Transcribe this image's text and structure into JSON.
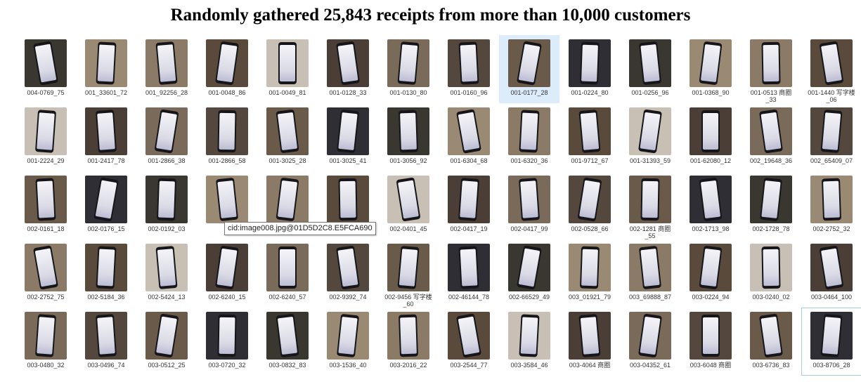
{
  "title": "Randomly gathered 25,843 receipts from more than 10,000 customers",
  "tooltip": "cid:image008.jpg@01D5D2C8.E5FCA690",
  "items": [
    "004-0769_75",
    "001_33601_72",
    "001_92256_28",
    "001-0048_86",
    "001-0049_81",
    "001-0128_33",
    "001-0130_80",
    "001-0160_96",
    "001-0177_28",
    "001-0224_80",
    "001-0256_96",
    "001-0368_90",
    "001-0513 商圈\n_33",
    "001-1440 写字楼\n_06",
    "001-2224_29",
    "001-2417_78",
    "001-2866_38",
    "001-2866_58",
    "001-3025_28",
    "001-3025_41",
    "001-3056_92",
    "001-6304_68",
    "001-6320_36",
    "001-9712_67",
    "001-31393_59",
    "001-62080_12",
    "002_19648_36",
    "002_65409_07",
    "002-0161_18",
    "002-0176_15",
    "002-0192_03",
    "",
    "",
    "",
    "002-0401_45",
    "002-0417_19",
    "002-0417_99",
    "002-0528_66",
    "002-1281 商圈\n_55",
    "002-1713_98",
    "002-1728_78",
    "002-2752_32",
    "002-2752_75",
    "002-5184_36",
    "002-5424_13",
    "002-6240_15",
    "002-6240_57",
    "002-9392_74",
    "002-9456 写字楼\n_60",
    "002-46144_78",
    "002-66529_49",
    "003_01921_79",
    "003_69888_87",
    "003-0224_94",
    "003-0240_02",
    "003-0464_100",
    "003-0480_32",
    "003-0496_74",
    "003-0512_25",
    "003-0720_32",
    "003-0832_83",
    "003-1536_40",
    "003-2016_22",
    "003-2544_77",
    "003-3584_46",
    "003-4064 商圈",
    "003-04352_61",
    "003-6048 商圈",
    "003-6736_83",
    "003-8706_28"
  ]
}
